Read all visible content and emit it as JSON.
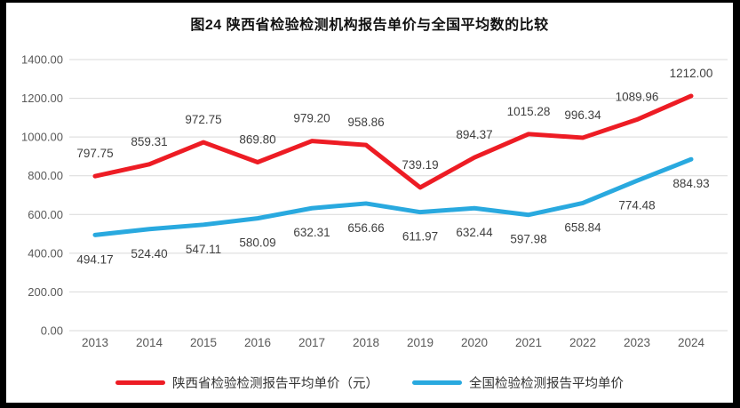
{
  "figure": {
    "title": "图24 陕西省检验检测机构报告单价与全国平均数的比较"
  },
  "chart_data": {
    "type": "line",
    "title": "图24 陕西省检验检测机构报告单价与全国平均数的比较",
    "categories": [
      "2013",
      "2014",
      "2015",
      "2016",
      "2017",
      "2018",
      "2019",
      "2020",
      "2021",
      "2022",
      "2023",
      "2024"
    ],
    "series": [
      {
        "name": "陕西省检验检测报告平均单价（元）",
        "color": "#ED1C24",
        "label_position": "above",
        "values": [
          797.75,
          859.31,
          972.75,
          869.8,
          979.2,
          958.86,
          739.19,
          894.37,
          1015.28,
          996.34,
          1089.96,
          1212.0
        ]
      },
      {
        "name": "全国检验检测报告平均单价",
        "color": "#29A9DF",
        "label_position": "below",
        "values": [
          494.17,
          524.4,
          547.11,
          580.09,
          632.31,
          656.66,
          611.97,
          632.44,
          597.98,
          658.84,
          774.48,
          884.93
        ]
      }
    ],
    "xlabel": "",
    "ylabel": "",
    "ylim": [
      0,
      1400
    ],
    "y_tick_step": 200,
    "y_ticks": [
      "0.00",
      "200.00",
      "400.00",
      "600.00",
      "800.00",
      "1000.00",
      "1200.00",
      "1400.00"
    ],
    "grid": "horizontal",
    "legend_position": "bottom",
    "colors": {
      "gridline": "#D9D9D9",
      "tick_text": "#595959",
      "data_label": "#3F3F3F",
      "frame": "#000000",
      "background": "#FFFFFF"
    }
  }
}
